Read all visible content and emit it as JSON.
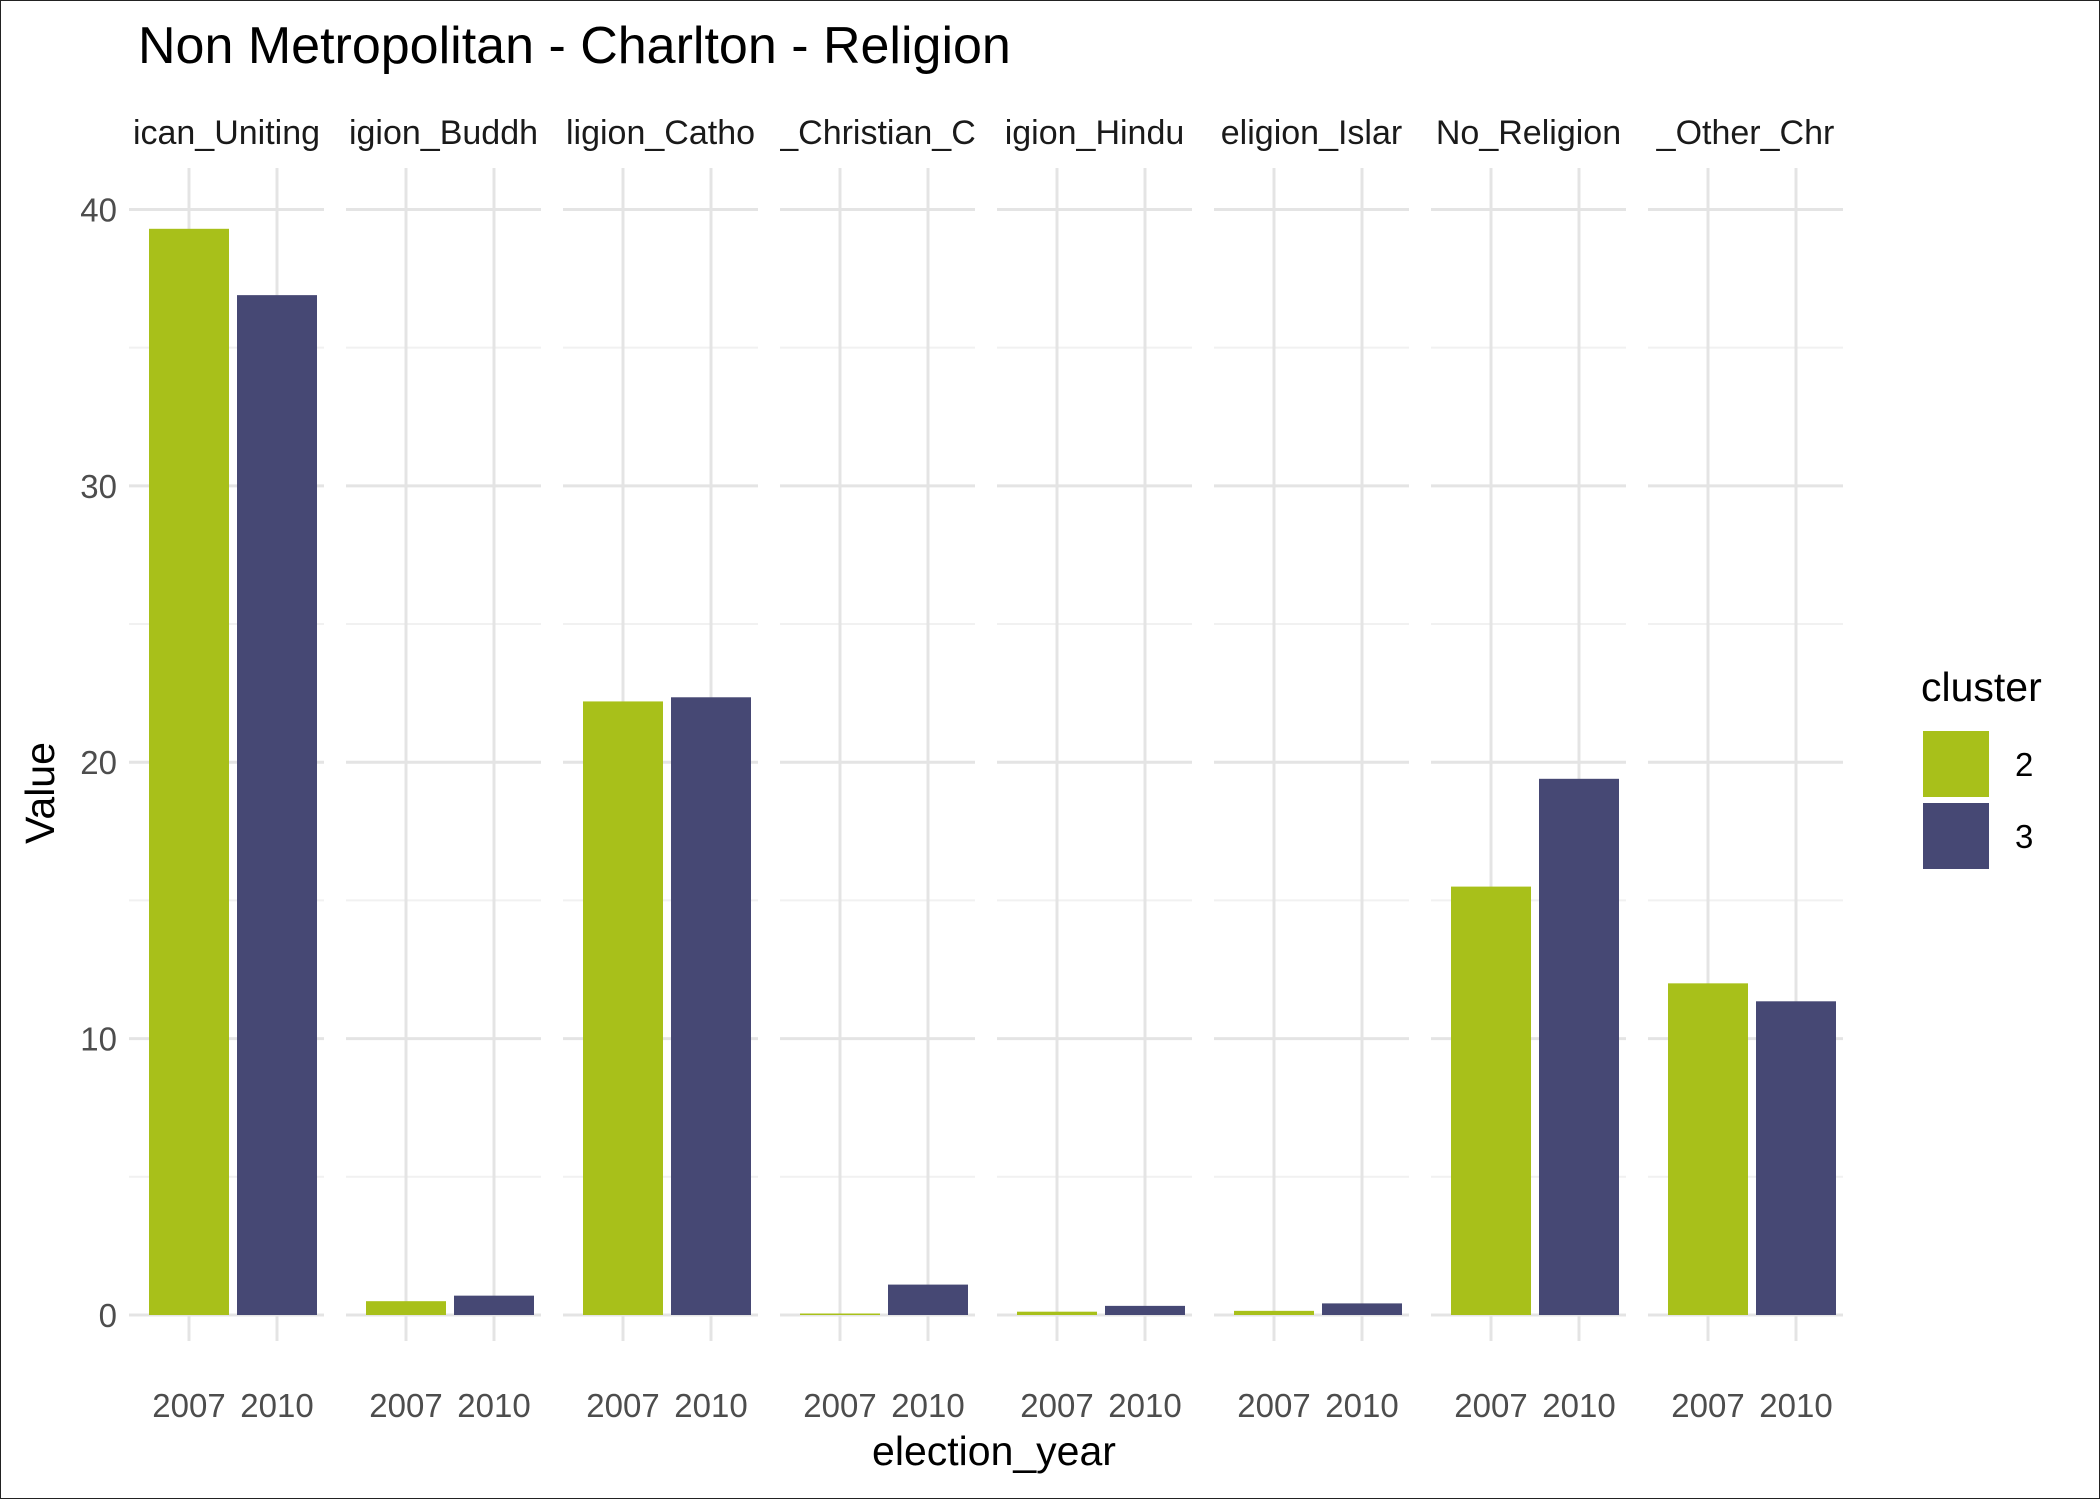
{
  "chart_data": {
    "type": "bar",
    "title": "Non Metropolitan - Charlton - Religion",
    "xlabel": "election_year",
    "ylabel": "Value",
    "ylim": [
      0,
      41.5
    ],
    "y_ticks": [
      0,
      10,
      20,
      30,
      40
    ],
    "grid": true,
    "legend": {
      "title": "cluster",
      "position": "right",
      "entries": [
        {
          "label": "2",
          "color": "#A8C01A"
        },
        {
          "label": "3",
          "color": "#464874"
        }
      ]
    },
    "facets": [
      {
        "label": "ican_Uniting",
        "bars": [
          {
            "x": "2007",
            "cluster": "2",
            "value": 39.3
          },
          {
            "x": "2010",
            "cluster": "3",
            "value": 36.9
          }
        ]
      },
      {
        "label": "igion_Buddh",
        "bars": [
          {
            "x": "2007",
            "cluster": "2",
            "value": 0.5
          },
          {
            "x": "2010",
            "cluster": "3",
            "value": 0.7
          }
        ]
      },
      {
        "label": "ligion_Catho",
        "bars": [
          {
            "x": "2007",
            "cluster": "2",
            "value": 22.2
          },
          {
            "x": "2010",
            "cluster": "3",
            "value": 22.35
          }
        ]
      },
      {
        "label": "_Christian_C",
        "bars": [
          {
            "x": "2007",
            "cluster": "2",
            "value": 0.05
          },
          {
            "x": "2010",
            "cluster": "3",
            "value": 1.1
          }
        ]
      },
      {
        "label": "igion_Hindu",
        "bars": [
          {
            "x": "2007",
            "cluster": "2",
            "value": 0.12
          },
          {
            "x": "2010",
            "cluster": "3",
            "value": 0.33
          }
        ]
      },
      {
        "label": "eligion_Islar",
        "bars": [
          {
            "x": "2007",
            "cluster": "2",
            "value": 0.15
          },
          {
            "x": "2010",
            "cluster": "3",
            "value": 0.42
          }
        ]
      },
      {
        "label": "No_Religion",
        "bars": [
          {
            "x": "2007",
            "cluster": "2",
            "value": 15.5
          },
          {
            "x": "2010",
            "cluster": "3",
            "value": 19.4
          }
        ]
      },
      {
        "label": "_Other_Chr",
        "bars": [
          {
            "x": "2007",
            "cluster": "2",
            "value": 12.0
          },
          {
            "x": "2010",
            "cluster": "3",
            "value": 11.35
          }
        ]
      }
    ]
  }
}
